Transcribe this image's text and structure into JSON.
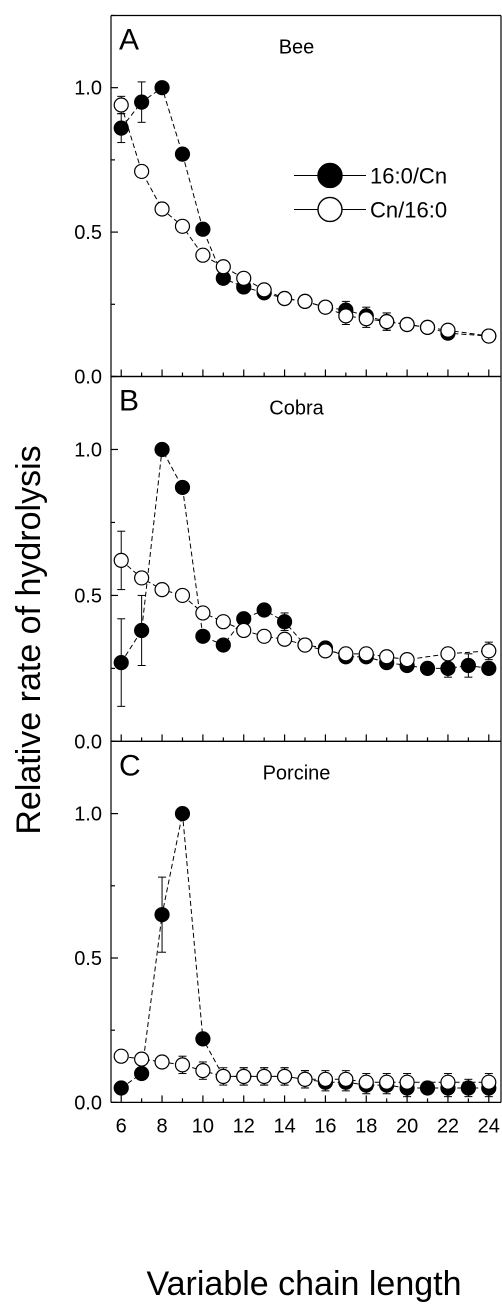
{
  "figure": {
    "ylabel": "Relative rate of hydrolysis",
    "xlabel": "Variable chain length",
    "x_ticks": [
      6,
      8,
      10,
      12,
      14,
      16,
      18,
      20,
      22,
      24
    ],
    "xlim": [
      5.5,
      24.5
    ],
    "legend_placement": "upper-right of panel A",
    "legend": [
      {
        "label": "16:0/Cn",
        "marker": "filled-circle"
      },
      {
        "label": "Cn/16:0",
        "marker": "open-circle"
      }
    ]
  },
  "chart_data": [
    {
      "type": "line",
      "panel_letter": "A",
      "title": "Bee",
      "ylim": [
        0,
        1.25
      ],
      "y_ticks": [
        0.0,
        0.5,
        1.0
      ],
      "y_tick_labels": [
        "0.0",
        "0.5",
        "1.0"
      ],
      "series": [
        {
          "name": "16:0/Cn",
          "marker": "filled",
          "x": [
            6,
            7,
            8,
            9,
            10,
            11,
            12,
            13,
            14,
            15,
            16,
            17,
            18,
            19,
            20,
            21,
            22,
            24
          ],
          "y": [
            0.86,
            0.95,
            1.0,
            0.77,
            0.51,
            0.34,
            0.31,
            0.29,
            0.27,
            0.26,
            0.24,
            0.23,
            0.21,
            0.19,
            0.18,
            0.17,
            0.15,
            0.14
          ],
          "err": [
            0.05,
            0.07,
            0.0,
            0.0,
            0.0,
            0.0,
            0.0,
            0.0,
            0.0,
            0.0,
            0.0,
            0.03,
            0.03,
            0.03,
            0.0,
            0.0,
            0.0,
            0.0
          ]
        },
        {
          "name": "Cn/16:0",
          "marker": "open",
          "x": [
            6,
            7,
            8,
            9,
            10,
            11,
            12,
            13,
            14,
            15,
            16,
            17,
            18,
            19,
            20,
            21,
            22,
            24
          ],
          "y": [
            0.94,
            0.71,
            0.58,
            0.52,
            0.42,
            0.38,
            0.34,
            0.3,
            0.27,
            0.26,
            0.24,
            0.21,
            0.2,
            0.19,
            0.18,
            0.17,
            0.16,
            0.14
          ],
          "err": [
            0.03,
            0.0,
            0.0,
            0.0,
            0.0,
            0.0,
            0.0,
            0.0,
            0.0,
            0.0,
            0.0,
            0.03,
            0.03,
            0.03,
            0.0,
            0.0,
            0.0,
            0.02
          ]
        }
      ]
    },
    {
      "type": "line",
      "panel_letter": "B",
      "title": "Cobra",
      "ylim": [
        0,
        1.25
      ],
      "y_ticks": [
        0.0,
        0.5,
        1.0
      ],
      "y_tick_labels": [
        "0.0",
        "0.5",
        "1.0"
      ],
      "series": [
        {
          "name": "16:0/Cn",
          "marker": "filled",
          "x": [
            6,
            7,
            8,
            9,
            10,
            11,
            12,
            13,
            14,
            15,
            16,
            17,
            18,
            19,
            20,
            21,
            22,
            23,
            24
          ],
          "y": [
            0.27,
            0.38,
            1.0,
            0.87,
            0.36,
            0.33,
            0.42,
            0.45,
            0.41,
            0.33,
            0.32,
            0.29,
            0.29,
            0.27,
            0.26,
            0.25,
            0.25,
            0.26,
            0.25
          ],
          "err": [
            0.15,
            0.12,
            0.0,
            0.0,
            0.0,
            0.0,
            0.0,
            0.02,
            0.03,
            0.0,
            0.0,
            0.0,
            0.0,
            0.02,
            0.02,
            0.02,
            0.03,
            0.04,
            0.02
          ]
        },
        {
          "name": "Cn/16:0",
          "marker": "open",
          "x": [
            6,
            7,
            8,
            9,
            10,
            11,
            12,
            13,
            14,
            15,
            16,
            17,
            18,
            19,
            20,
            22,
            24
          ],
          "y": [
            0.62,
            0.56,
            0.52,
            0.5,
            0.44,
            0.41,
            0.38,
            0.36,
            0.35,
            0.33,
            0.31,
            0.3,
            0.3,
            0.29,
            0.28,
            0.3,
            0.31
          ],
          "err": [
            0.1,
            0.0,
            0.02,
            0.0,
            0.0,
            0.02,
            0.0,
            0.0,
            0.0,
            0.0,
            0.0,
            0.0,
            0.0,
            0.0,
            0.0,
            0.02,
            0.03
          ]
        }
      ]
    },
    {
      "type": "line",
      "panel_letter": "C",
      "title": "Porcine",
      "ylim": [
        0,
        1.25
      ],
      "y_ticks": [
        0.0,
        0.5,
        1.0
      ],
      "y_tick_labels": [
        "0.0",
        "0.5",
        "1.0"
      ],
      "series": [
        {
          "name": "16:0/Cn",
          "marker": "filled",
          "x": [
            6,
            7,
            8,
            9,
            10,
            11,
            12,
            13,
            14,
            15,
            16,
            17,
            18,
            19,
            20,
            21,
            22,
            23,
            24
          ],
          "y": [
            0.05,
            0.1,
            0.65,
            1.0,
            0.22,
            0.09,
            0.09,
            0.09,
            0.09,
            0.08,
            0.07,
            0.07,
            0.06,
            0.06,
            0.05,
            0.05,
            0.05,
            0.05,
            0.05
          ],
          "err": [
            0.0,
            0.0,
            0.13,
            0.0,
            0.0,
            0.02,
            0.03,
            0.03,
            0.03,
            0.03,
            0.03,
            0.03,
            0.03,
            0.03,
            0.03,
            0.02,
            0.03,
            0.03,
            0.03
          ]
        },
        {
          "name": "Cn/16:0",
          "marker": "open",
          "x": [
            6,
            7,
            8,
            9,
            10,
            11,
            12,
            13,
            14,
            15,
            16,
            17,
            18,
            19,
            20,
            22,
            24
          ],
          "y": [
            0.16,
            0.15,
            0.14,
            0.13,
            0.11,
            0.09,
            0.09,
            0.09,
            0.09,
            0.08,
            0.08,
            0.08,
            0.07,
            0.07,
            0.07,
            0.07,
            0.07
          ],
          "err": [
            0.01,
            0.02,
            0.0,
            0.03,
            0.03,
            0.03,
            0.03,
            0.03,
            0.03,
            0.03,
            0.03,
            0.03,
            0.03,
            0.03,
            0.03,
            0.03,
            0.03
          ]
        }
      ]
    }
  ]
}
